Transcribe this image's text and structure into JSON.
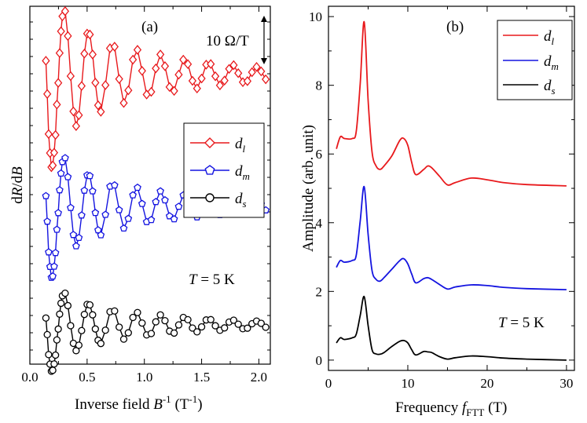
{
  "chart_data": [
    {
      "type": "line",
      "panel_label": "(a)",
      "xlabel_main": "Inverse field ",
      "xlabel_var": "B",
      "xlabel_sup": "-1",
      "xlabel_unit": " (T",
      "xlabel_unit_sup": "-1",
      "xlabel_close": ")",
      "ylabel_d1": "d",
      "ylabel_R": "R",
      "ylabel_d2": "/d",
      "ylabel_B": "B",
      "xlim": [
        0.0,
        2.1
      ],
      "xticks": [
        "0.0",
        "0.5",
        "1.0",
        "1.5",
        "2.0"
      ],
      "scale_bar_label": "10 Ω/T",
      "temperature_var": "T",
      "temperature_text": " = 5 K",
      "legend": [
        {
          "main": "d",
          "sub": "l"
        },
        {
          "main": "d",
          "sub": "m"
        },
        {
          "main": "d",
          "sub": "s"
        }
      ],
      "colors": [
        "#e8191c",
        "#1414e0",
        "#000000"
      ],
      "markers": [
        "diamond",
        "pentagon",
        "circle"
      ],
      "offsets_ohm_per_T": [
        55,
        26,
        0
      ],
      "series_model": {
        "amplitudes": [
          6.0,
          4.6,
          3.0
        ],
        "b_inv_start": 0.14,
        "b_inv_end": 2.1,
        "decay": 1.15
      }
    },
    {
      "type": "line",
      "panel_label": "(b)",
      "xlabel_main": "Frequency ",
      "xlabel_var": "f",
      "xlabel_sub": "FTT",
      "xlabel_unit": " (T)",
      "ylabel": "Amplitude (arb. unit)",
      "xlim": [
        0,
        31
      ],
      "ylim": [
        -0.3,
        10.3
      ],
      "xticks": [
        0,
        10,
        20,
        30
      ],
      "yticks": [
        0,
        2,
        4,
        6,
        8,
        10
      ],
      "temperature_var": "T",
      "temperature_text": " = 5 K",
      "legend": [
        {
          "main": "d",
          "sub": "l"
        },
        {
          "main": "d",
          "sub": "m"
        },
        {
          "main": "d",
          "sub": "s"
        }
      ],
      "colors": [
        "#e8191c",
        "#1414e0",
        "#000000"
      ],
      "series": [
        {
          "offset": 5.05,
          "x": [
            1.0,
            1.5,
            2,
            3,
            3.5,
            4,
            4.5,
            5,
            5.5,
            6,
            6.5,
            7,
            8,
            9,
            9.5,
            10,
            10.5,
            11,
            12,
            12.5,
            13,
            14,
            15,
            16,
            18,
            20,
            22,
            25,
            30
          ],
          "y": [
            1.1,
            1.45,
            1.4,
            1.4,
            1.6,
            3.0,
            4.8,
            2.5,
            1.0,
            0.6,
            0.5,
            0.6,
            0.9,
            1.35,
            1.4,
            1.2,
            0.7,
            0.35,
            0.5,
            0.6,
            0.55,
            0.3,
            0.05,
            0.12,
            0.25,
            0.2,
            0.12,
            0.06,
            0.02
          ]
        },
        {
          "offset": 2.05,
          "x": [
            1.0,
            1.5,
            2,
            3,
            3.5,
            4,
            4.5,
            5,
            5.5,
            6,
            6.5,
            7,
            8,
            9,
            9.5,
            10,
            10.5,
            11,
            12,
            12.5,
            13,
            14,
            15,
            16,
            18,
            20,
            22,
            25,
            30
          ],
          "y": [
            0.65,
            0.85,
            0.8,
            0.85,
            1.0,
            2.0,
            3.0,
            1.6,
            0.55,
            0.3,
            0.25,
            0.35,
            0.6,
            0.85,
            0.9,
            0.75,
            0.45,
            0.2,
            0.32,
            0.35,
            0.3,
            0.15,
            0.02,
            0.08,
            0.14,
            0.12,
            0.07,
            0.03,
            0.0
          ]
        },
        {
          "offset": 0.0,
          "x": [
            1.0,
            1.5,
            2,
            3,
            3.5,
            4,
            4.5,
            5,
            5.5,
            6,
            6.5,
            7,
            8,
            9,
            9.5,
            10,
            10.5,
            11,
            12,
            12.5,
            13,
            14,
            15,
            16,
            18,
            20,
            22,
            25,
            30
          ],
          "y": [
            0.5,
            0.65,
            0.6,
            0.65,
            0.75,
            1.3,
            1.85,
            1.0,
            0.3,
            0.18,
            0.17,
            0.22,
            0.4,
            0.55,
            0.57,
            0.5,
            0.3,
            0.15,
            0.25,
            0.24,
            0.22,
            0.1,
            0.03,
            0.07,
            0.12,
            0.1,
            0.06,
            0.03,
            0.0
          ]
        }
      ]
    }
  ]
}
